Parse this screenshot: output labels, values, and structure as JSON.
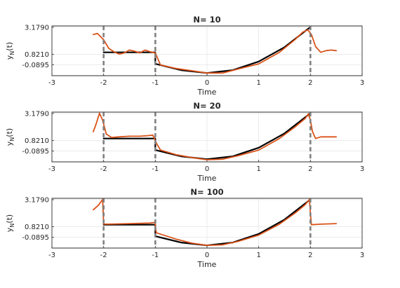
{
  "chart_data": [
    {
      "type": "line",
      "title": "N= 10",
      "xlabel": "Time",
      "ylabel": "y_N(t)",
      "xlim": [
        -3,
        3
      ],
      "ylim": [
        -1.03,
        3.3
      ],
      "xticks": [
        -3,
        -2,
        -1,
        0,
        1,
        2,
        3
      ],
      "yticks": [
        -0.0895,
        0.821,
        3.179
      ],
      "ytick_labels": [
        "-0.0895",
        "0.8210",
        "3.1790"
      ],
      "grid": true,
      "colors": {
        "true": "#000000",
        "approx": "#d95319",
        "markers": "#808080"
      },
      "vlines": [
        -2,
        -1,
        2
      ],
      "series": [
        {
          "role": "true",
          "x": [
            -2.0,
            -1.5,
            -1.0,
            -1.0,
            -0.5,
            0.0,
            0.5,
            1.0,
            1.5,
            2.0
          ],
          "y": [
            1.0,
            1.0,
            1.0,
            0.0,
            -0.55,
            -0.8,
            -0.55,
            0.2,
            1.45,
            3.2
          ]
        },
        {
          "role": "approx",
          "x": [
            -2.2,
            -2.12,
            -2.0,
            -1.9,
            -1.8,
            -1.7,
            -1.6,
            -1.5,
            -1.4,
            -1.3,
            -1.2,
            -1.1,
            -1.0,
            -0.9,
            -0.6,
            -0.3,
            0.0,
            0.3,
            0.6,
            1.0,
            1.4,
            1.7,
            1.85,
            1.95,
            2.02,
            2.1,
            2.2,
            2.3,
            2.4,
            2.5
          ],
          "y": [
            2.55,
            2.65,
            2.1,
            1.35,
            1.05,
            0.85,
            0.95,
            1.2,
            1.1,
            0.95,
            1.2,
            1.05,
            0.95,
            -0.1,
            -0.4,
            -0.6,
            -0.8,
            -0.8,
            -0.45,
            0.0,
            1.0,
            2.1,
            2.75,
            2.95,
            2.55,
            1.5,
            1.0,
            1.15,
            1.2,
            1.15
          ]
        }
      ]
    },
    {
      "type": "line",
      "title": "N= 20",
      "xlabel": "Time",
      "ylabel": "y_N(t)",
      "xlim": [
        -3,
        3
      ],
      "ylim": [
        -1.03,
        3.3
      ],
      "xticks": [
        -3,
        -2,
        -1,
        0,
        1,
        2,
        3
      ],
      "yticks": [
        -0.0895,
        0.821,
        3.179
      ],
      "ytick_labels": [
        "-0.0895",
        "0.8210",
        "3.1790"
      ],
      "grid": true,
      "colors": {
        "true": "#000000",
        "approx": "#d95319",
        "markers": "#808080"
      },
      "vlines": [
        -2,
        -1,
        2
      ],
      "series": [
        {
          "role": "true",
          "x": [
            -2.0,
            -1.5,
            -1.0,
            -1.0,
            -0.5,
            0.0,
            0.5,
            1.0,
            1.5,
            2.0
          ],
          "y": [
            1.0,
            1.0,
            1.0,
            0.0,
            -0.55,
            -0.8,
            -0.55,
            0.2,
            1.45,
            3.2
          ]
        },
        {
          "role": "approx",
          "x": [
            -2.2,
            -2.15,
            -2.08,
            -2.02,
            -1.95,
            -1.85,
            -1.7,
            -1.5,
            -1.3,
            -1.15,
            -1.05,
            -0.98,
            -0.9,
            -0.6,
            -0.3,
            0.0,
            0.3,
            0.6,
            1.0,
            1.4,
            1.7,
            1.9,
            1.96,
            2.0,
            2.04,
            2.1,
            2.2,
            2.35,
            2.5
          ],
          "y": [
            1.6,
            2.2,
            3.2,
            2.6,
            1.4,
            1.1,
            1.15,
            1.2,
            1.2,
            1.25,
            1.3,
            0.6,
            0.0,
            -0.4,
            -0.65,
            -0.85,
            -0.8,
            -0.5,
            0.0,
            1.0,
            2.0,
            2.75,
            3.15,
            2.6,
            1.6,
            1.0,
            1.15,
            1.15,
            1.15
          ]
        }
      ]
    },
    {
      "type": "line",
      "title": "N= 100",
      "xlabel": "Time",
      "ylabel": "y_N(t)",
      "xlim": [
        -3,
        3
      ],
      "ylim": [
        -1.03,
        3.3
      ],
      "xticks": [
        -3,
        -2,
        -1,
        0,
        1,
        2,
        3
      ],
      "yticks": [
        -0.0895,
        0.821,
        3.179
      ],
      "ytick_labels": [
        "-0.0895",
        "0.8210",
        "3.1790"
      ],
      "grid": true,
      "colors": {
        "true": "#000000",
        "approx": "#d95319",
        "markers": "#808080"
      },
      "vlines": [
        -2,
        -1,
        2
      ],
      "series": [
        {
          "role": "true",
          "x": [
            -2.0,
            -1.5,
            -1.0,
            -1.0,
            -0.5,
            0.0,
            0.5,
            1.0,
            1.5,
            2.0
          ],
          "y": [
            1.0,
            1.0,
            1.0,
            0.0,
            -0.55,
            -0.8,
            -0.55,
            0.2,
            1.45,
            3.2
          ]
        },
        {
          "role": "approx",
          "x": [
            -2.2,
            -2.1,
            -2.02,
            -2.0,
            -1.9,
            -1.5,
            -1.1,
            -1.01,
            -0.98,
            -0.6,
            -0.3,
            0.0,
            0.3,
            0.6,
            1.0,
            1.4,
            1.7,
            1.9,
            1.98,
            2.0,
            2.02,
            2.2,
            2.5
          ],
          "y": [
            2.3,
            2.7,
            3.2,
            1.05,
            1.05,
            1.1,
            1.15,
            1.2,
            0.3,
            -0.25,
            -0.6,
            -0.8,
            -0.75,
            -0.45,
            0.1,
            1.05,
            2.0,
            2.75,
            3.2,
            2.0,
            1.0,
            1.05,
            1.1
          ]
        }
      ]
    }
  ]
}
